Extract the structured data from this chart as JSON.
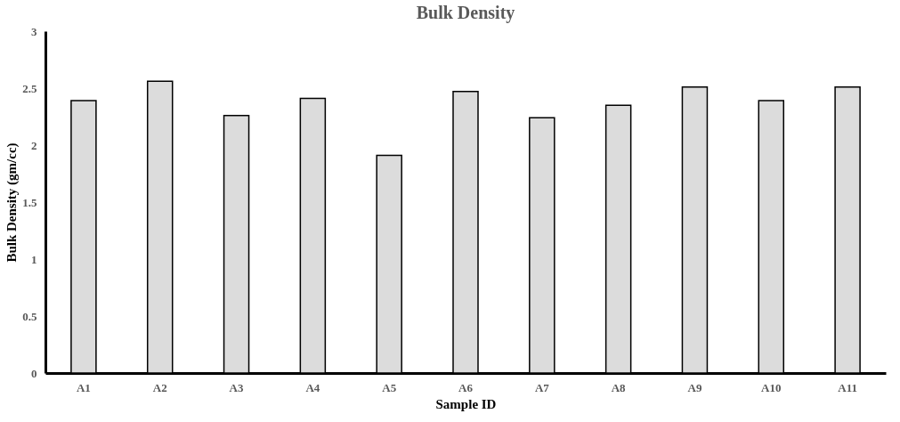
{
  "chart_data": {
    "type": "bar",
    "title": "Bulk Density",
    "xlabel": "Sample ID",
    "ylabel": "Bulk Density (gm/cc)",
    "categories": [
      "A1",
      "A2",
      "A3",
      "A4",
      "A5",
      "A6",
      "A7",
      "A8",
      "A9",
      "A10",
      "A11"
    ],
    "values": [
      2.39,
      2.56,
      2.26,
      2.41,
      1.91,
      2.47,
      2.24,
      2.35,
      2.51,
      2.39,
      2.51
    ],
    "color": "#dcdcdc",
    "ylim": [
      0,
      3
    ],
    "yticks": [
      0,
      0.5,
      1,
      1.5,
      2,
      2.5,
      3
    ],
    "grid": false
  }
}
